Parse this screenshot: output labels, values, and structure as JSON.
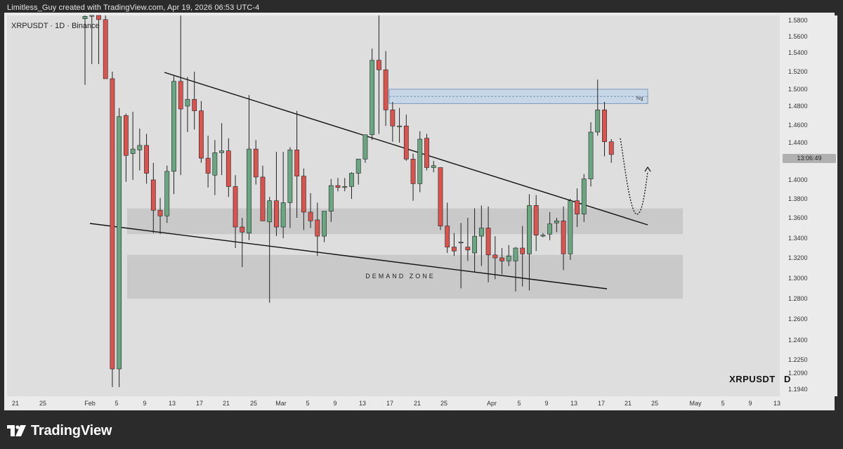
{
  "header": {
    "text": "Limitless_Guy created with TradingView.com, Apr 19, 2026 06:53 UTC-4"
  },
  "legend": {
    "text": "XRPUSDT · 1D · Binance"
  },
  "symbol_label": "XRPUSDT   D",
  "annotations": {
    "demand_zone": "DEMAND ZONE",
    "fvg": "fvg",
    "countdown": "13:06:49"
  },
  "footer": {
    "brand": "TradingView"
  },
  "colors": {
    "background": "#2b2b2b",
    "panel": "#ebebeb",
    "plot": "#dedede",
    "up": "#6aa682",
    "down": "#d9534f",
    "zone": "#c9c9c9",
    "fvg_fill": "#c8d7e8",
    "fvg_edge": "#7d97b8"
  },
  "chart_data": {
    "type": "candlestick",
    "symbol": "XRPUSDT",
    "interval": "1D",
    "exchange": "Binance",
    "y_ticks": [
      "1.5800",
      "1.5600",
      "1.5400",
      "1.5200",
      "1.5000",
      "1.4800",
      "1.4600",
      "1.4400",
      "1.4200",
      "1.4000",
      "1.3800",
      "1.3600",
      "1.3400",
      "1.3200",
      "1.3000",
      "1.2800",
      "1.2600",
      "1.2400",
      "1.2250",
      "1.2090",
      "1.1940"
    ],
    "x_ticks": [
      "21",
      "25",
      "Feb",
      "5",
      "9",
      "13",
      "17",
      "21",
      "25",
      "Mar",
      "5",
      "9",
      "13",
      "17",
      "21",
      "25",
      "Apr",
      "5",
      "9",
      "13",
      "17",
      "21",
      "25",
      "May",
      "5",
      "9",
      "13"
    ],
    "candles": [
      {
        "o": 1.582,
        "h": 1.59,
        "l": 1.505,
        "c": 1.585
      },
      {
        "o": 1.586,
        "h": 1.592,
        "l": 1.528,
        "c": 1.589
      },
      {
        "o": 1.59,
        "h": 1.598,
        "l": 1.528,
        "c": 1.581
      },
      {
        "o": 1.581,
        "h": 1.588,
        "l": 1.513,
        "c": 1.512
      },
      {
        "o": 1.512,
        "h": 1.52,
        "l": 1.196,
        "c": 1.214
      },
      {
        "o": 1.214,
        "h": 1.478,
        "l": 1.196,
        "c": 1.469
      },
      {
        "o": 1.47,
        "h": 1.472,
        "l": 1.398,
        "c": 1.426
      },
      {
        "o": 1.428,
        "h": 1.474,
        "l": 1.4,
        "c": 1.433
      },
      {
        "o": 1.432,
        "h": 1.456,
        "l": 1.41,
        "c": 1.437
      },
      {
        "o": 1.437,
        "h": 1.45,
        "l": 1.396,
        "c": 1.407
      },
      {
        "o": 1.4,
        "h": 1.418,
        "l": 1.345,
        "c": 1.368
      },
      {
        "o": 1.368,
        "h": 1.381,
        "l": 1.344,
        "c": 1.362
      },
      {
        "o": 1.362,
        "h": 1.415,
        "l": 1.355,
        "c": 1.409
      },
      {
        "o": 1.409,
        "h": 1.515,
        "l": 1.385,
        "c": 1.509
      },
      {
        "o": 1.509,
        "h": 1.592,
        "l": 1.405,
        "c": 1.477
      },
      {
        "o": 1.48,
        "h": 1.514,
        "l": 1.452,
        "c": 1.488
      },
      {
        "o": 1.488,
        "h": 1.52,
        "l": 1.455,
        "c": 1.475
      },
      {
        "o": 1.475,
        "h": 1.486,
        "l": 1.418,
        "c": 1.423
      },
      {
        "o": 1.423,
        "h": 1.448,
        "l": 1.392,
        "c": 1.407
      },
      {
        "o": 1.405,
        "h": 1.443,
        "l": 1.384,
        "c": 1.429
      },
      {
        "o": 1.429,
        "h": 1.462,
        "l": 1.405,
        "c": 1.431
      },
      {
        "o": 1.431,
        "h": 1.445,
        "l": 1.382,
        "c": 1.393
      },
      {
        "o": 1.393,
        "h": 1.405,
        "l": 1.33,
        "c": 1.351
      },
      {
        "o": 1.351,
        "h": 1.36,
        "l": 1.311,
        "c": 1.346
      },
      {
        "o": 1.345,
        "h": 1.493,
        "l": 1.338,
        "c": 1.433
      },
      {
        "o": 1.433,
        "h": 1.443,
        "l": 1.395,
        "c": 1.403
      },
      {
        "o": 1.403,
        "h": 1.415,
        "l": 1.357,
        "c": 1.357
      },
      {
        "o": 1.356,
        "h": 1.382,
        "l": 1.276,
        "c": 1.378
      },
      {
        "o": 1.378,
        "h": 1.43,
        "l": 1.342,
        "c": 1.351
      },
      {
        "o": 1.351,
        "h": 1.43,
        "l": 1.34,
        "c": 1.376
      },
      {
        "o": 1.376,
        "h": 1.435,
        "l": 1.35,
        "c": 1.432
      },
      {
        "o": 1.432,
        "h": 1.475,
        "l": 1.36,
        "c": 1.404
      },
      {
        "o": 1.404,
        "h": 1.412,
        "l": 1.348,
        "c": 1.366
      },
      {
        "o": 1.366,
        "h": 1.386,
        "l": 1.35,
        "c": 1.357
      },
      {
        "o": 1.358,
        "h": 1.376,
        "l": 1.322,
        "c": 1.342
      },
      {
        "o": 1.342,
        "h": 1.366,
        "l": 1.336,
        "c": 1.367
      },
      {
        "o": 1.367,
        "h": 1.401,
        "l": 1.356,
        "c": 1.394
      },
      {
        "o": 1.394,
        "h": 1.402,
        "l": 1.388,
        "c": 1.392
      },
      {
        "o": 1.392,
        "h": 1.402,
        "l": 1.388,
        "c": 1.393
      },
      {
        "o": 1.393,
        "h": 1.408,
        "l": 1.38,
        "c": 1.407
      },
      {
        "o": 1.407,
        "h": 1.422,
        "l": 1.395,
        "c": 1.422
      },
      {
        "o": 1.422,
        "h": 1.448,
        "l": 1.418,
        "c": 1.449
      },
      {
        "o": 1.449,
        "h": 1.545,
        "l": 1.443,
        "c": 1.532
      },
      {
        "o": 1.532,
        "h": 1.59,
        "l": 1.45,
        "c": 1.522
      },
      {
        "o": 1.522,
        "h": 1.542,
        "l": 1.459,
        "c": 1.476
      },
      {
        "o": 1.476,
        "h": 1.485,
        "l": 1.441,
        "c": 1.459
      },
      {
        "o": 1.459,
        "h": 1.478,
        "l": 1.44,
        "c": 1.459
      },
      {
        "o": 1.459,
        "h": 1.471,
        "l": 1.42,
        "c": 1.422
      },
      {
        "o": 1.422,
        "h": 1.428,
        "l": 1.378,
        "c": 1.396
      },
      {
        "o": 1.396,
        "h": 1.453,
        "l": 1.387,
        "c": 1.444
      },
      {
        "o": 1.445,
        "h": 1.45,
        "l": 1.41,
        "c": 1.413
      },
      {
        "o": 1.413,
        "h": 1.42,
        "l": 1.408,
        "c": 1.415
      },
      {
        "o": 1.413,
        "h": 1.412,
        "l": 1.348,
        "c": 1.352
      },
      {
        "o": 1.352,
        "h": 1.376,
        "l": 1.325,
        "c": 1.331
      },
      {
        "o": 1.331,
        "h": 1.345,
        "l": 1.322,
        "c": 1.327
      },
      {
        "o": 1.336,
        "h": 1.355,
        "l": 1.29,
        "c": 1.336
      },
      {
        "o": 1.331,
        "h": 1.36,
        "l": 1.317,
        "c": 1.328
      },
      {
        "o": 1.325,
        "h": 1.37,
        "l": 1.306,
        "c": 1.342
      },
      {
        "o": 1.342,
        "h": 1.373,
        "l": 1.312,
        "c": 1.35
      },
      {
        "o": 1.35,
        "h": 1.372,
        "l": 1.296,
        "c": 1.323
      },
      {
        "o": 1.323,
        "h": 1.342,
        "l": 1.299,
        "c": 1.32
      },
      {
        "o": 1.32,
        "h": 1.33,
        "l": 1.304,
        "c": 1.317
      },
      {
        "o": 1.317,
        "h": 1.333,
        "l": 1.312,
        "c": 1.322
      },
      {
        "o": 1.317,
        "h": 1.331,
        "l": 1.287,
        "c": 1.33
      },
      {
        "o": 1.33,
        "h": 1.352,
        "l": 1.292,
        "c": 1.324
      },
      {
        "o": 1.324,
        "h": 1.385,
        "l": 1.288,
        "c": 1.373
      },
      {
        "o": 1.373,
        "h": 1.384,
        "l": 1.327,
        "c": 1.343
      },
      {
        "o": 1.342,
        "h": 1.345,
        "l": 1.341,
        "c": 1.343
      },
      {
        "o": 1.344,
        "h": 1.366,
        "l": 1.338,
        "c": 1.354
      },
      {
        "o": 1.355,
        "h": 1.36,
        "l": 1.346,
        "c": 1.357
      },
      {
        "o": 1.357,
        "h": 1.372,
        "l": 1.308,
        "c": 1.324
      },
      {
        "o": 1.324,
        "h": 1.38,
        "l": 1.318,
        "c": 1.378
      },
      {
        "o": 1.378,
        "h": 1.391,
        "l": 1.351,
        "c": 1.364
      },
      {
        "o": 1.364,
        "h": 1.406,
        "l": 1.356,
        "c": 1.401
      },
      {
        "o": 1.401,
        "h": 1.463,
        "l": 1.393,
        "c": 1.452
      },
      {
        "o": 1.452,
        "h": 1.511,
        "l": 1.448,
        "c": 1.476
      },
      {
        "o": 1.476,
        "h": 1.485,
        "l": 1.425,
        "c": 1.441
      },
      {
        "o": 1.441,
        "h": 1.444,
        "l": 1.418,
        "c": 1.427
      }
    ],
    "zones": [
      {
        "label": "",
        "y_top": 1.37,
        "y_bottom": 1.344
      },
      {
        "label": "DEMAND ZONE",
        "y_top": 1.323,
        "y_bottom": 1.28
      }
    ],
    "fvg": {
      "label": "fvg",
      "y_top": 1.5,
      "y_bottom": 1.483
    },
    "countdown": "13:06:49"
  }
}
